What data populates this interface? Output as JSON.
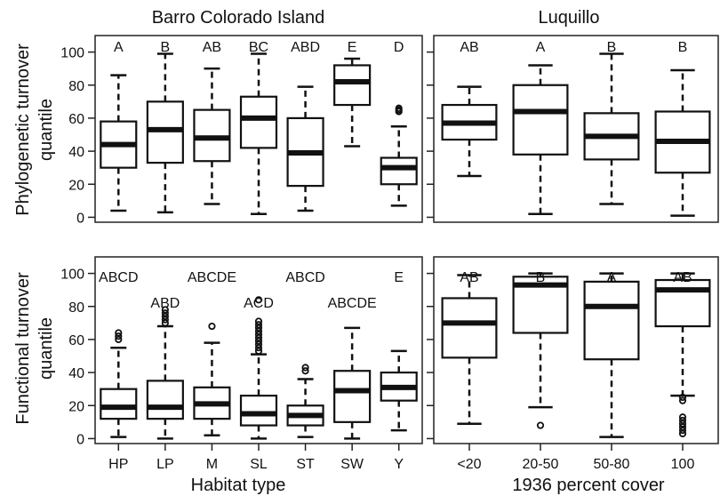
{
  "figure": {
    "col_titles": [
      "Barro Colorado Island",
      "Luquillo"
    ],
    "row_labels": [
      {
        "line1": "Phylogenetic turnover",
        "line2": "quantile"
      },
      {
        "line1": "Functional turnover",
        "line2": "quantile"
      }
    ],
    "x_titles": [
      "Habitat type",
      "1936 percent cover"
    ],
    "y_ticks": [
      0,
      20,
      40,
      60,
      80,
      100
    ]
  },
  "chart_data": [
    {
      "type": "box",
      "title": "Barro Colorado Island",
      "ylabel": "Phylogenetic turnover quantile",
      "xlabel": "",
      "ylim": [
        -3,
        110
      ],
      "categories": [
        "HP",
        "LP",
        "M",
        "SL",
        "ST",
        "SW",
        "Y"
      ],
      "letters": [
        "A",
        "B",
        "AB",
        "BC",
        "ABD",
        "E",
        "D"
      ],
      "boxes": [
        {
          "min": 4,
          "q1": 30,
          "median": 44,
          "q3": 58,
          "max": 86,
          "outliers": []
        },
        {
          "min": 3,
          "q1": 33,
          "median": 53,
          "q3": 70,
          "max": 99,
          "outliers": []
        },
        {
          "min": 8,
          "q1": 34,
          "median": 48,
          "q3": 65,
          "max": 90,
          "outliers": []
        },
        {
          "min": 2,
          "q1": 42,
          "median": 60,
          "q3": 73,
          "max": 99,
          "outliers": []
        },
        {
          "min": 4,
          "q1": 19,
          "median": 39,
          "q3": 60,
          "max": 79,
          "outliers": []
        },
        {
          "min": 43,
          "q1": 68,
          "median": 82,
          "q3": 92,
          "max": 96,
          "outliers": []
        },
        {
          "min": 7,
          "q1": 20,
          "median": 30,
          "q3": 36,
          "max": 55,
          "outliers": [
            64,
            65,
            66
          ]
        }
      ]
    },
    {
      "type": "box",
      "title": "Luquillo",
      "ylabel": "",
      "xlabel": "",
      "ylim": [
        -3,
        110
      ],
      "categories": [
        "<20",
        "20-50",
        "50-80",
        "100"
      ],
      "letters": [
        "AB",
        "A",
        "B",
        "B"
      ],
      "boxes": [
        {
          "min": 25,
          "q1": 47,
          "median": 57,
          "q3": 68,
          "max": 79,
          "outliers": []
        },
        {
          "min": 2,
          "q1": 38,
          "median": 64,
          "q3": 80,
          "max": 92,
          "outliers": []
        },
        {
          "min": 8,
          "q1": 35,
          "median": 49,
          "q3": 63,
          "max": 99,
          "outliers": []
        },
        {
          "min": 1,
          "q1": 27,
          "median": 46,
          "q3": 64,
          "max": 89,
          "outliers": []
        }
      ]
    },
    {
      "type": "box",
      "title": "",
      "ylabel": "Functional turnover quantile",
      "xlabel": "Habitat type",
      "ylim": [
        -3,
        110
      ],
      "categories": [
        "HP",
        "LP",
        "M",
        "SL",
        "ST",
        "SW",
        "Y"
      ],
      "letters": [
        "ABCD",
        "ABD",
        "ABCDE",
        "ACD",
        "ABCD",
        "ABCDE",
        "E"
      ],
      "boxes": [
        {
          "min": 1,
          "q1": 12,
          "median": 19,
          "q3": 30,
          "max": 55,
          "outliers": [
            60,
            62,
            64
          ]
        },
        {
          "min": 0,
          "q1": 12,
          "median": 19,
          "q3": 35,
          "max": 68,
          "outliers": [
            70,
            72,
            74,
            76,
            78
          ]
        },
        {
          "min": 2,
          "q1": 12,
          "median": 21,
          "q3": 31,
          "max": 58,
          "outliers": [
            68
          ]
        },
        {
          "min": 0,
          "q1": 8,
          "median": 15,
          "q3": 26,
          "max": 51,
          "outliers": [
            53,
            55,
            57,
            59,
            61,
            63,
            65,
            67,
            69,
            71,
            84
          ]
        },
        {
          "min": 1,
          "q1": 8,
          "median": 14,
          "q3": 20,
          "max": 36,
          "outliers": [
            41,
            43
          ]
        },
        {
          "min": 0,
          "q1": 10,
          "median": 29,
          "q3": 41,
          "max": 67,
          "outliers": []
        },
        {
          "min": 5,
          "q1": 23,
          "median": 31,
          "q3": 40,
          "max": 53,
          "outliers": []
        }
      ]
    },
    {
      "type": "box",
      "title": "",
      "ylabel": "",
      "xlabel": "1936 percent cover",
      "ylim": [
        -3,
        110
      ],
      "categories": [
        "<20",
        "20-50",
        "50-80",
        "100"
      ],
      "letters": [
        "AB",
        "B",
        "A",
        "AB"
      ],
      "boxes": [
        {
          "min": 9,
          "q1": 49,
          "median": 70,
          "q3": 85,
          "max": 99,
          "outliers": []
        },
        {
          "min": 19,
          "q1": 64,
          "median": 93,
          "q3": 98,
          "max": 100,
          "outliers": [
            8
          ]
        },
        {
          "min": 1,
          "q1": 48,
          "median": 80,
          "q3": 95,
          "max": 100,
          "outliers": []
        },
        {
          "min": 26,
          "q1": 68,
          "median": 90,
          "q3": 96,
          "max": 100,
          "outliers": [
            3,
            5,
            7,
            9,
            11,
            13,
            23,
            25
          ]
        }
      ]
    }
  ]
}
